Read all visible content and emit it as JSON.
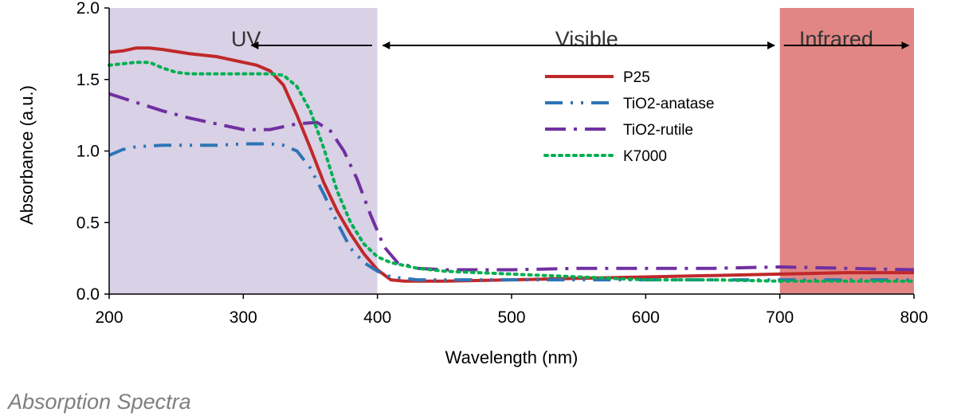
{
  "caption": "Absorption Spectra",
  "chart_data": {
    "type": "line",
    "title": "",
    "xlabel": "Wavelength (nm)",
    "ylabel": "Absorbance (a.u.)",
    "xlim": [
      200,
      800
    ],
    "ylim": [
      0,
      2.0
    ],
    "x_ticks": [
      "200",
      "300",
      "400",
      "500",
      "600",
      "700",
      "800"
    ],
    "y_ticks": [
      "0.0",
      "0.5",
      "1.0",
      "1.5",
      "2.0"
    ],
    "grid": false,
    "legend_position": "upper-right-inside",
    "regions": [
      {
        "label": "UV",
        "x_range": [
          200,
          400
        ],
        "color": "#d9d1e6"
      },
      {
        "label": "Visible",
        "x_range": [
          400,
          700
        ],
        "color": "#ffffff"
      },
      {
        "label": "Infrared",
        "x_range": [
          700,
          800
        ],
        "color": "#e18684"
      }
    ],
    "series": [
      {
        "name": "P25",
        "color": "#c0282a",
        "style": "solid",
        "points": [
          [
            200,
            1.69
          ],
          [
            210,
            1.7
          ],
          [
            220,
            1.72
          ],
          [
            230,
            1.72
          ],
          [
            240,
            1.71
          ],
          [
            260,
            1.68
          ],
          [
            280,
            1.66
          ],
          [
            300,
            1.62
          ],
          [
            310,
            1.6
          ],
          [
            320,
            1.56
          ],
          [
            330,
            1.46
          ],
          [
            340,
            1.25
          ],
          [
            350,
            1.02
          ],
          [
            360,
            0.78
          ],
          [
            370,
            0.58
          ],
          [
            380,
            0.42
          ],
          [
            390,
            0.28
          ],
          [
            400,
            0.17
          ],
          [
            410,
            0.1
          ],
          [
            420,
            0.09
          ],
          [
            450,
            0.09
          ],
          [
            500,
            0.1
          ],
          [
            550,
            0.11
          ],
          [
            600,
            0.12
          ],
          [
            650,
            0.13
          ],
          [
            700,
            0.14
          ],
          [
            750,
            0.15
          ],
          [
            800,
            0.15
          ]
        ]
      },
      {
        "name": "TiO2-anatase",
        "color": "#2e75b6",
        "style": "dashdot",
        "points": [
          [
            200,
            0.97
          ],
          [
            210,
            1.01
          ],
          [
            220,
            1.03
          ],
          [
            240,
            1.04
          ],
          [
            260,
            1.04
          ],
          [
            280,
            1.04
          ],
          [
            300,
            1.05
          ],
          [
            320,
            1.05
          ],
          [
            330,
            1.04
          ],
          [
            340,
            1.0
          ],
          [
            350,
            0.88
          ],
          [
            360,
            0.7
          ],
          [
            370,
            0.5
          ],
          [
            380,
            0.32
          ],
          [
            390,
            0.22
          ],
          [
            400,
            0.16
          ],
          [
            410,
            0.12
          ],
          [
            430,
            0.1
          ],
          [
            500,
            0.1
          ],
          [
            600,
            0.1
          ],
          [
            700,
            0.1
          ],
          [
            750,
            0.1
          ],
          [
            800,
            0.1
          ]
        ]
      },
      {
        "name": "TiO2-rutile",
        "color": "#7030a0",
        "style": "longdashdot",
        "points": [
          [
            200,
            1.4
          ],
          [
            220,
            1.34
          ],
          [
            240,
            1.28
          ],
          [
            260,
            1.23
          ],
          [
            280,
            1.19
          ],
          [
            300,
            1.15
          ],
          [
            320,
            1.15
          ],
          [
            340,
            1.19
          ],
          [
            355,
            1.2
          ],
          [
            365,
            1.14
          ],
          [
            375,
            1.0
          ],
          [
            385,
            0.8
          ],
          [
            395,
            0.55
          ],
          [
            405,
            0.33
          ],
          [
            415,
            0.22
          ],
          [
            430,
            0.18
          ],
          [
            450,
            0.17
          ],
          [
            500,
            0.17
          ],
          [
            550,
            0.18
          ],
          [
            600,
            0.18
          ],
          [
            650,
            0.18
          ],
          [
            700,
            0.19
          ],
          [
            750,
            0.18
          ],
          [
            800,
            0.17
          ]
        ]
      },
      {
        "name": "K7000",
        "color": "#00b050",
        "style": "dotted",
        "points": [
          [
            200,
            1.6
          ],
          [
            210,
            1.61
          ],
          [
            220,
            1.62
          ],
          [
            230,
            1.62
          ],
          [
            240,
            1.58
          ],
          [
            250,
            1.55
          ],
          [
            260,
            1.54
          ],
          [
            280,
            1.54
          ],
          [
            300,
            1.54
          ],
          [
            320,
            1.54
          ],
          [
            330,
            1.53
          ],
          [
            340,
            1.45
          ],
          [
            350,
            1.28
          ],
          [
            360,
            1.02
          ],
          [
            370,
            0.72
          ],
          [
            380,
            0.5
          ],
          [
            390,
            0.35
          ],
          [
            400,
            0.26
          ],
          [
            410,
            0.22
          ],
          [
            430,
            0.18
          ],
          [
            450,
            0.16
          ],
          [
            500,
            0.14
          ],
          [
            550,
            0.12
          ],
          [
            600,
            0.1
          ],
          [
            650,
            0.1
          ],
          [
            700,
            0.09
          ],
          [
            750,
            0.09
          ],
          [
            800,
            0.09
          ]
        ]
      }
    ]
  }
}
